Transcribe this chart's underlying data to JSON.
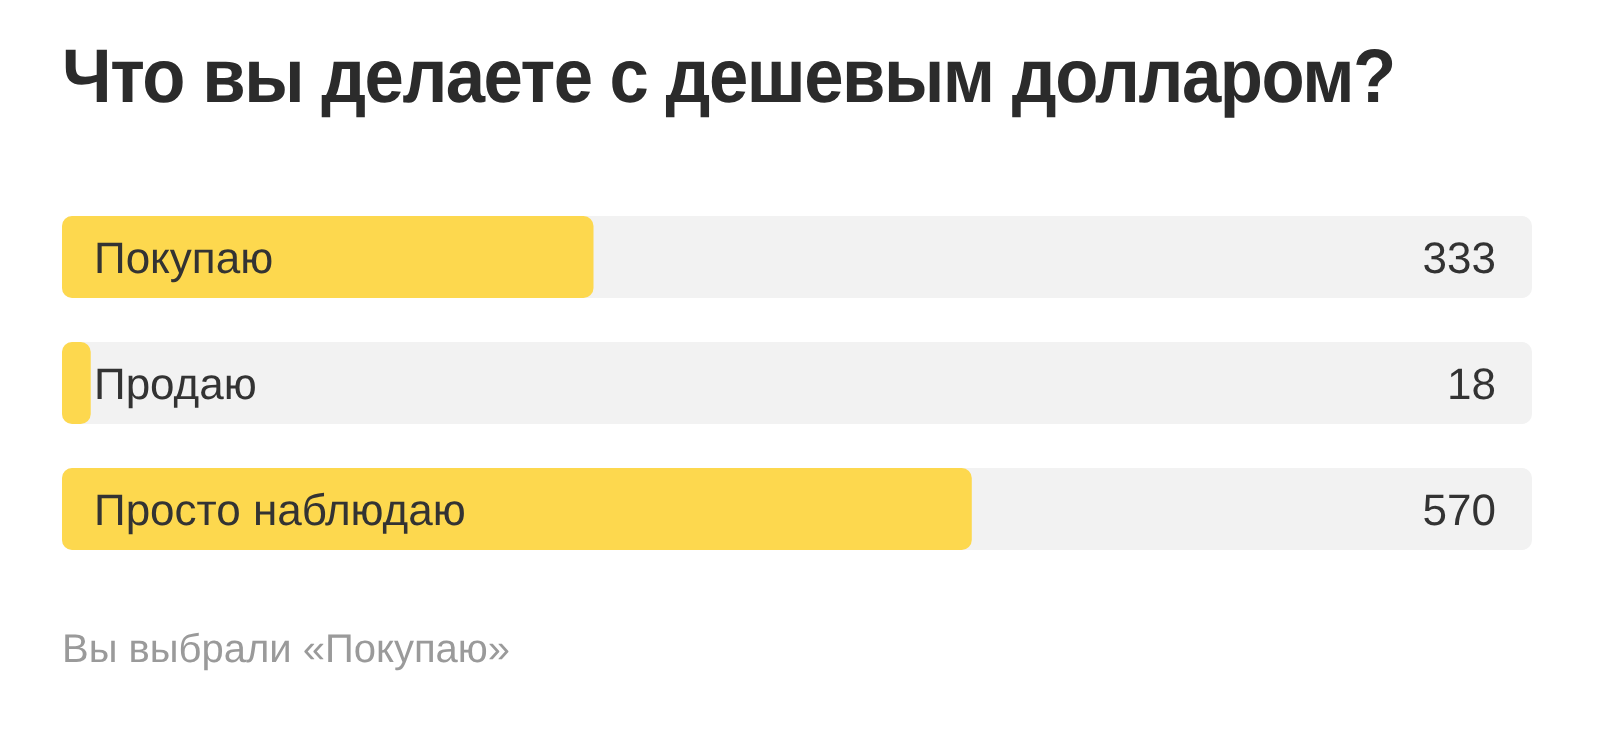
{
  "chart_data": {
    "type": "bar",
    "orientation": "horizontal",
    "title": "Что вы делаете с дешевым долларом?",
    "categories": [
      "Покупаю",
      "Продаю",
      "Просто наблюдаю"
    ],
    "values": [
      333,
      18,
      570
    ],
    "color": "#fdd84e",
    "data_labels": true,
    "annotations": [
      "Вы выбрали «Покупаю»"
    ]
  }
}
